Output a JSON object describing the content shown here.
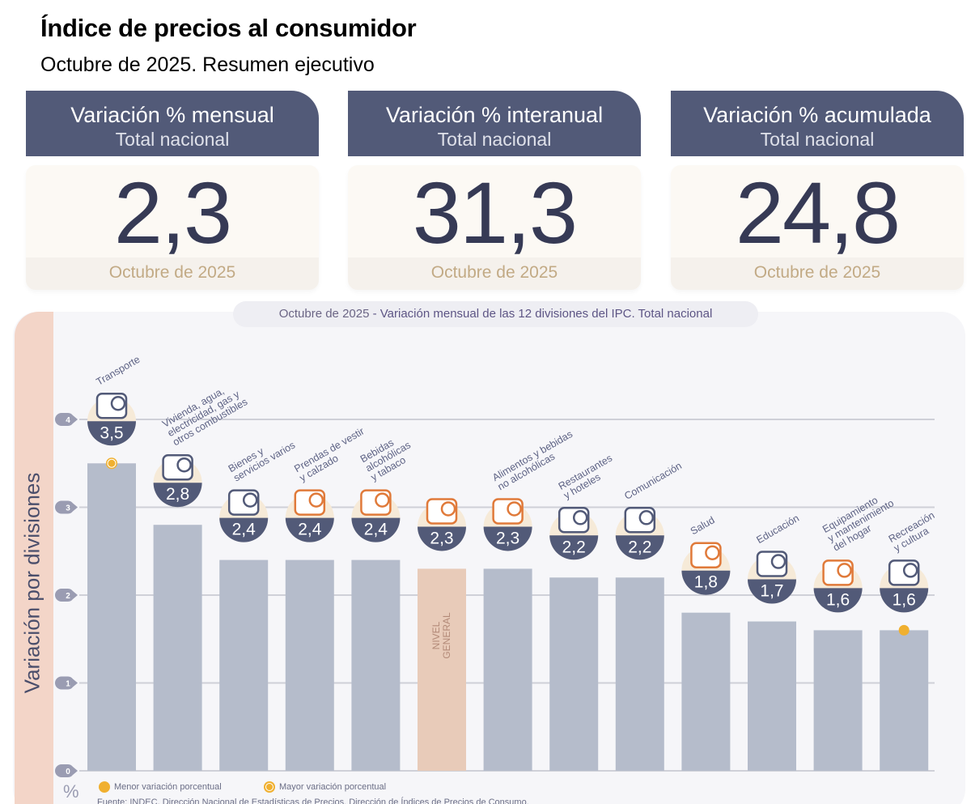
{
  "header": {
    "title": "Índice de precios al consumidor",
    "subtitle": "Octubre de 2025. Resumen ejecutivo"
  },
  "cards": [
    {
      "title": "Variación % mensual",
      "scope": "Total nacional",
      "value": "2,3",
      "period": "Octubre de 2025"
    },
    {
      "title": "Variación % interanual",
      "scope": "Total nacional",
      "value": "31,3",
      "period": "Octubre de 2025"
    },
    {
      "title": "Variación % acumulada",
      "scope": "Total nacional",
      "value": "24,8",
      "period": "Octubre de 2025"
    }
  ],
  "chart_panel": {
    "title_period": "Octubre de 2025",
    "title_rest": " - Variación mensual de las 12 divisiones del IPC. Total nacional",
    "ylabel": "Variación por divisiones",
    "unit": "%",
    "legend": {
      "min_label": "Menor variación porcentual",
      "max_label": "Mayor variación porcentual"
    },
    "source": "Fuente: INDEC, Dirección Nacional de Estadísticas de Precios. Dirección de Índices de Precios de Consumo."
  },
  "colors": {
    "bar": "#b5bccb",
    "bar_general": "#e8cbb9",
    "badge": "#525a78",
    "accent_orange": "#e07a3a",
    "marker": "#f0b030",
    "label": "#5e6385"
  },
  "chart_data": {
    "type": "bar",
    "title": "Octubre de 2025 - Variación mensual de las 12 divisiones del IPC. Total nacional",
    "xlabel": "",
    "ylabel": "Variación por divisiones",
    "yunit": "%",
    "ylim": [
      0,
      4
    ],
    "yticks": [
      0,
      1,
      2,
      3,
      4
    ],
    "grid": true,
    "legend_position": "bottom-left",
    "categories": [
      "Transporte",
      "Vivienda, agua, electricidad, gas y otros combustibles",
      "Bienes y servicios varios",
      "Prendas de vestir y calzado",
      "Bebidas alcohólicas y tabaco",
      "Nivel general",
      "Alimentos y bebidas no alcohólicas",
      "Restaurantes y hoteles",
      "Comunicación",
      "Salud",
      "Educación",
      "Equipamiento y mantenimiento del hogar",
      "Recreación y cultura"
    ],
    "label_lines": [
      [
        "Transporte"
      ],
      [
        "Vivienda, agua,",
        "electricidad, gas y",
        "otros combustibles"
      ],
      [
        "Bienes y",
        "servicios varios"
      ],
      [
        "Prendas de vestir",
        "y calzado"
      ],
      [
        "Bebidas",
        "alcohólicas",
        "y tabaco"
      ],
      [],
      [
        "Alimentos y bebidas",
        "no alcohólicas"
      ],
      [
        "Restaurantes",
        "y hoteles"
      ],
      [
        "Comunicación"
      ],
      [
        "Salud"
      ],
      [
        "Educación"
      ],
      [
        "Equipamiento",
        "y mantenimiento",
        "del hogar"
      ],
      [
        "Recreación",
        "y cultura"
      ]
    ],
    "values": [
      3.5,
      2.8,
      2.4,
      2.4,
      2.4,
      2.3,
      2.3,
      2.2,
      2.2,
      1.8,
      1.7,
      1.6,
      1.6
    ],
    "value_labels": [
      "3,5",
      "2,8",
      "2,4",
      "2,4",
      "2,4",
      "2,3",
      "2,3",
      "2,2",
      "2,2",
      "1,8",
      "1,7",
      "1,6",
      "1,6"
    ],
    "icons": [
      "car-sube-icon",
      "lightbulb-tools-icon",
      "comb-scissors-icon",
      "tshirt-shoe-icon",
      "bottle-glass-icon",
      "shopping-bag-icon",
      "chicken-plate-icon",
      "plate-cutlery-icon",
      "smartphone-icon",
      "first-aid-icon",
      "notebook-pencil-icon",
      "washer-aircon-icon",
      "umbrella-sun-icon"
    ],
    "general_index": {
      "index": 5,
      "label_lines": [
        "NIVEL",
        "GENERAL"
      ]
    },
    "max_marker_index": 0,
    "min_marker_index": 12
  }
}
